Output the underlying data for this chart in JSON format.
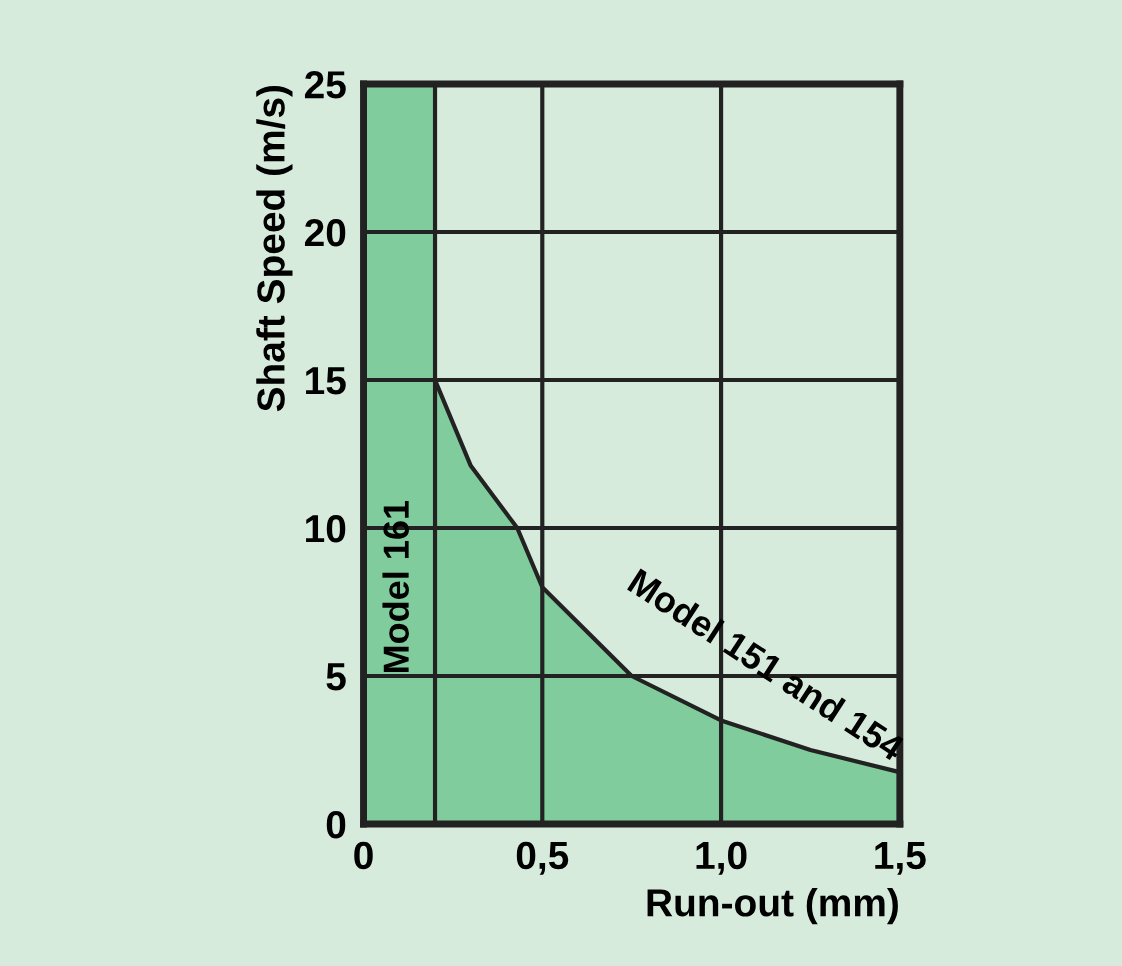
{
  "chart_data": {
    "type": "area",
    "xlabel": "Run-out (mm)",
    "ylabel": "Shaft Speed (m/s)",
    "x": [
      0.2,
      0.3,
      0.43,
      0.5,
      0.75,
      1.0,
      1.25,
      1.5
    ],
    "series": [
      {
        "name": "Model 151 and 154",
        "color": "#80cc9c",
        "values": [
          15,
          12.1,
          10,
          8,
          5,
          3.5,
          2.5,
          1.75
        ]
      }
    ],
    "bands": [
      {
        "axis": "x",
        "from": 0,
        "to": 0.2,
        "label": "Model 161",
        "color": "#80cc9c"
      }
    ],
    "xlim": [
      0,
      1.5
    ],
    "ylim": [
      0,
      25
    ],
    "xticks": [
      0,
      {
        "value": 0.5,
        "label": "0,5"
      },
      {
        "value": 1.0,
        "label": "1,0"
      },
      {
        "value": 1.5,
        "label": "1,5"
      }
    ],
    "yticks": [
      0,
      5,
      10,
      15,
      20,
      25
    ],
    "grid": true,
    "legend": false
  }
}
